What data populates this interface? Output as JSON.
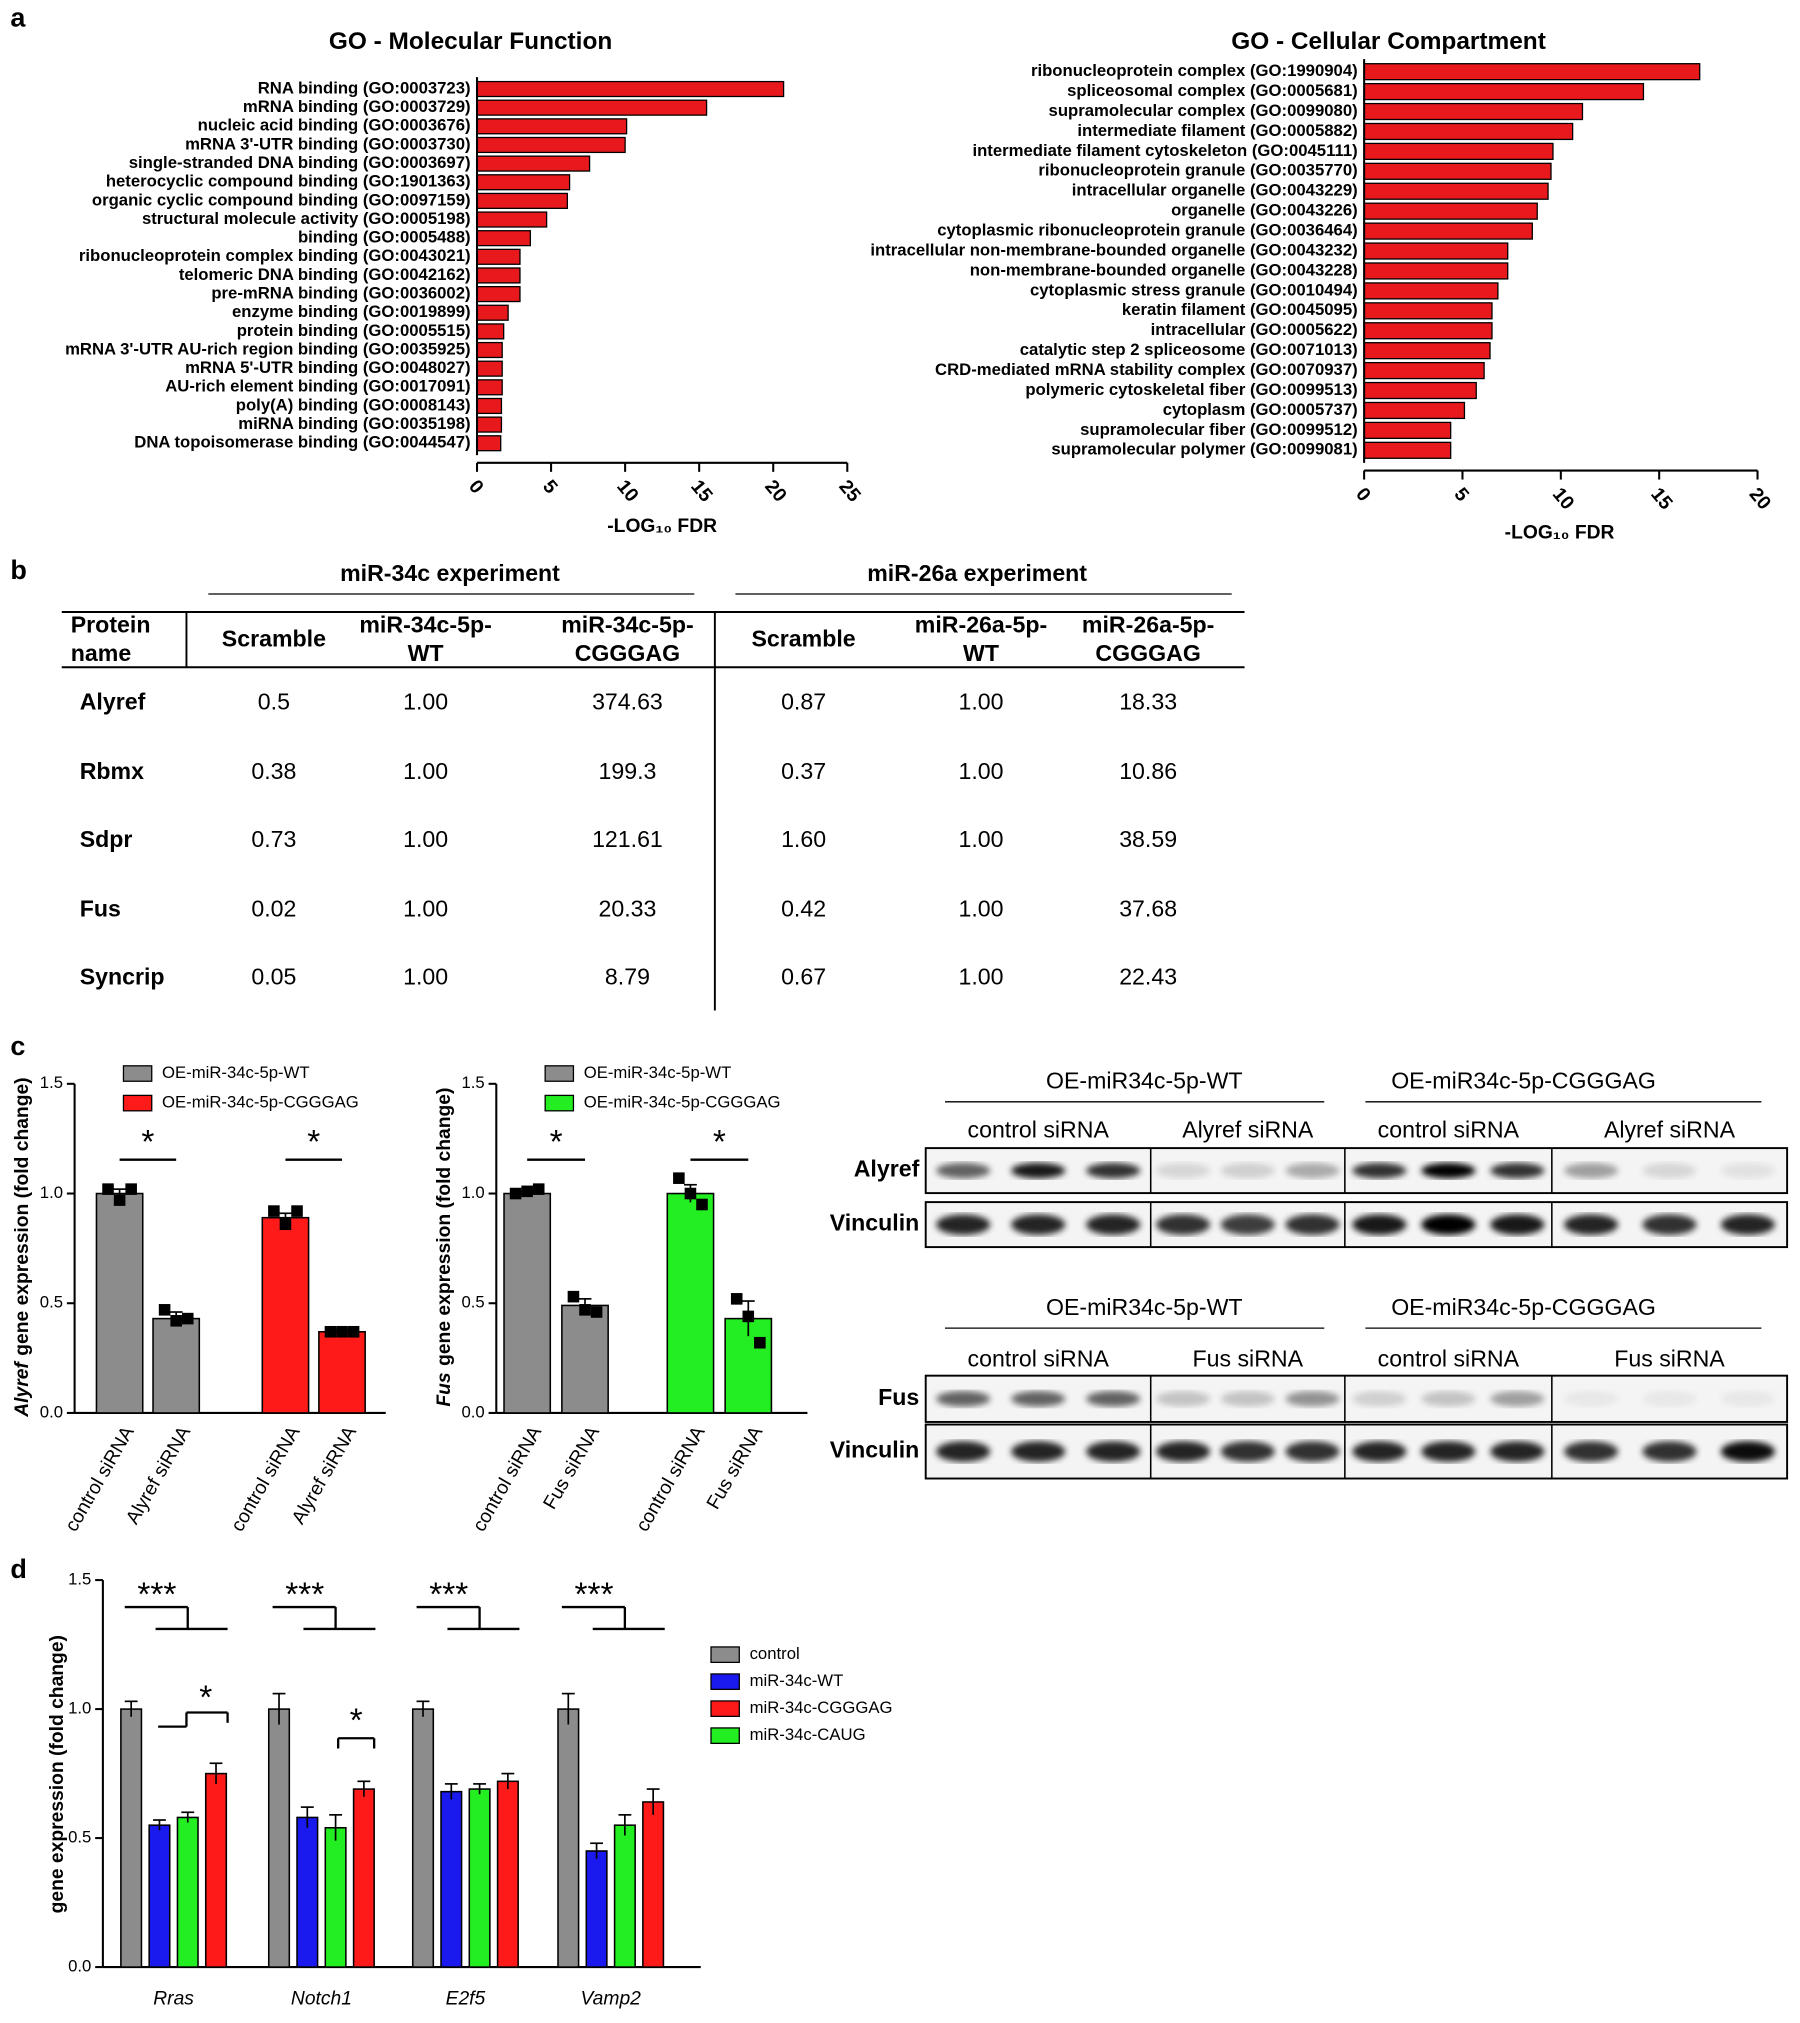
{
  "panel_labels": [
    "a",
    "b",
    "c",
    "d"
  ],
  "chart_data": [
    {
      "type": "hbar",
      "title": "GO - Molecular Function",
      "color": "#e8191c",
      "categories": [
        "RNA binding (GO:0003723)",
        "mRNA binding (GO:0003729)",
        "nucleic acid binding (GO:0003676)",
        "mRNA 3'-UTR binding (GO:0003730)",
        "single-stranded DNA binding (GO:0003697)",
        "heterocyclic compound binding (GO:1901363)",
        "organic cyclic compound binding (GO:0097159)",
        "structural molecule activity (GO:0005198)",
        "binding (GO:0005488)",
        "ribonucleoprotein complex binding (GO:0043021)",
        "telomeric DNA binding (GO:0042162)",
        "pre-mRNA binding (GO:0036002)",
        "enzyme binding (GO:0019899)",
        "protein binding (GO:0005515)",
        "mRNA 3'-UTR AU-rich region binding (GO:0035925)",
        "mRNA 5'-UTR binding (GO:0048027)",
        "AU-rich element binding (GO:0017091)",
        "poly(A) binding (GO:0008143)",
        "miRNA binding (GO:0035198)",
        "DNA topoisomerase binding (GO:0044547)"
      ],
      "values": [
        20.7,
        15.5,
        10.1,
        10.0,
        7.6,
        6.25,
        6.1,
        4.7,
        3.6,
        2.9,
        2.9,
        2.9,
        2.1,
        1.8,
        1.7,
        1.7,
        1.7,
        1.65,
        1.65,
        1.6
      ],
      "xlim": [
        0,
        25
      ],
      "xticks": [
        0,
        5,
        10,
        15,
        20,
        25
      ],
      "xlabel": "-LOG₁₀ FDR"
    },
    {
      "type": "hbar",
      "title": "GO - Cellular Compartment",
      "color": "#e8191c",
      "categories": [
        "ribonucleoprotein complex (GO:1990904)",
        "spliceosomal complex (GO:0005681)",
        "supramolecular complex (GO:0099080)",
        "intermediate filament (GO:0005882)",
        "intermediate filament cytoskeleton (GO:0045111)",
        "ribonucleoprotein granule (GO:0035770)",
        "intracellular organelle (GO:0043229)",
        "organelle (GO:0043226)",
        "cytoplasmic ribonucleoprotein granule (GO:0036464)",
        "intracellular non-membrane-bounded organelle (GO:0043232)",
        "non-membrane-bounded organelle (GO:0043228)",
        "cytoplasmic stress granule (GO:0010494)",
        "keratin filament (GO:0045095)",
        "intracellular (GO:0005622)",
        "catalytic step 2 spliceosome (GO:0071013)",
        "CRD-mediated mRNA stability complex (GO:0070937)",
        "polymeric cytoskeletal fiber (GO:0099513)",
        "cytoplasm (GO:0005737)",
        "supramolecular fiber (GO:0099512)",
        "supramolecular polymer (GO:0099081)"
      ],
      "values": [
        17.06,
        14.2,
        11.1,
        10.6,
        9.6,
        9.5,
        9.35,
        8.8,
        8.55,
        7.3,
        7.3,
        6.8,
        6.5,
        6.5,
        6.4,
        6.1,
        5.7,
        5.1,
        4.4,
        4.4
      ],
      "xlim": [
        0,
        20
      ],
      "xticks": [
        0,
        5,
        10,
        15,
        20
      ],
      "xlabel": "-LOG₁₀ FDR"
    },
    {
      "type": "bar",
      "ylabel_gene": "Alyref",
      "ylabel": "gene expression (fold change)",
      "categories": [
        "control siRNA",
        "Alyref siRNA",
        "control siRNA",
        "Alyref siRNA"
      ],
      "series": [
        {
          "name": "OE-miR-34c-5p-WT",
          "color": "#8c8c8c",
          "values": [
            1.0,
            0.43,
            null,
            null
          ],
          "errors": [
            0.02,
            0.03,
            null,
            null
          ],
          "points": [
            [
              1.02,
              0.97,
              1.02
            ],
            [
              0.47,
              0.42,
              0.43
            ],
            null,
            null
          ]
        },
        {
          "name": "OE-miR-34c-5p-CGGGAG",
          "color": "#ff1a1a",
          "values": [
            null,
            null,
            0.89,
            0.37
          ],
          "errors": [
            null,
            null,
            0.02,
            0.01
          ],
          "points": [
            null,
            null,
            [
              0.92,
              0.86,
              0.92
            ],
            [
              0.37,
              0.37,
              0.37
            ]
          ]
        }
      ],
      "ylim": [
        0,
        1.5
      ],
      "yticks": [
        {
          "value": 0,
          "label": "0.0"
        },
        0.5,
        {
          "value": 1,
          "label": "1.0"
        },
        1.5
      ],
      "annotations": [
        "*",
        "*"
      ]
    },
    {
      "type": "bar",
      "ylabel_gene": "Fus",
      "ylabel": "gene expression (fold change)",
      "categories": [
        "control siRNA",
        "Fus siRNA",
        "control siRNA",
        "Fus siRNA"
      ],
      "series": [
        {
          "name": "OE-miR-34c-5p-WT",
          "color": "#8c8c8c",
          "values": [
            1.0,
            0.49,
            null,
            null
          ],
          "errors": [
            0.01,
            0.03,
            null,
            null
          ],
          "points": [
            [
              1.0,
              1.01,
              1.02
            ],
            [
              0.53,
              0.47,
              0.46
            ],
            null,
            null
          ]
        },
        {
          "name": "OE-miR-34c-5p-CGGGAG",
          "color": "#22ee22",
          "values": [
            null,
            null,
            1.0,
            0.43
          ],
          "errors": [
            null,
            null,
            0.04,
            0.08
          ],
          "points": [
            null,
            null,
            [
              1.07,
              1.0,
              0.95
            ],
            [
              0.52,
              0.44,
              0.32
            ]
          ]
        }
      ],
      "ylim": [
        0,
        1.5
      ],
      "yticks": [
        {
          "value": 0,
          "label": "0.0"
        },
        0.5,
        {
          "value": 1,
          "label": "1.0"
        },
        1.5
      ],
      "annotations": [
        "*",
        "*"
      ]
    },
    {
      "type": "grouped",
      "ylabel": "gene expression (fold change)",
      "categories": [
        "Rras",
        "Notch1",
        "E2f5",
        "Vamp2"
      ],
      "series": [
        {
          "name": "control",
          "color": "#8c8c8c",
          "values": [
            1.0,
            1.0,
            1.0,
            1.0
          ],
          "errors": [
            0.03,
            0.06,
            0.03,
            0.06
          ]
        },
        {
          "name": "miR-34c-WT",
          "color": "#1a1aee",
          "values": [
            0.55,
            0.58,
            0.68,
            0.45
          ],
          "errors": [
            0.02,
            0.04,
            0.03,
            0.03
          ]
        },
        {
          "name": "miR-34c-CGGGAG",
          "color": "#ff1a1a",
          "values": [
            0.75,
            0.69,
            0.72,
            0.64
          ],
          "errors": [
            0.04,
            0.03,
            0.03,
            0.05
          ]
        },
        {
          "name": "miR-34c-CAUG",
          "color": "#22ee22",
          "values": [
            0.58,
            0.54,
            0.69,
            0.55
          ],
          "errors": [
            0.02,
            0.05,
            0.02,
            0.04
          ]
        }
      ],
      "ylim": [
        0,
        1.5
      ],
      "yticks": [
        {
          "value": 0,
          "label": "0.0"
        },
        0.5,
        {
          "value": 1,
          "label": "1.0"
        },
        1.5
      ],
      "annotations": [
        "***",
        "***",
        "***",
        "***",
        "*",
        "*"
      ]
    }
  ],
  "table": {
    "groups": [
      "miR-34c experiment",
      "miR-26a experiment"
    ],
    "columns": [
      "Protein name",
      "Scramble",
      "miR-34c-5p-WT",
      "miR-34c-5p-CGGGAG",
      "Scramble",
      "miR-26a-5p-WT",
      "miR-26a-5p-CGGGAG"
    ],
    "rows": [
      [
        "Alyref",
        "0.5",
        "1.00",
        "374.63",
        "0.87",
        "1.00",
        "18.33"
      ],
      [
        "Rbmx",
        "0.38",
        "1.00",
        "199.3",
        "0.37",
        "1.00",
        "10.86"
      ],
      [
        "Sdpr",
        "0.73",
        "1.00",
        "121.61",
        "1.60",
        "1.00",
        "38.59"
      ],
      [
        "Fus",
        "0.02",
        "1.00",
        "20.33",
        "0.42",
        "1.00",
        "37.68"
      ],
      [
        "Syncrip",
        "0.05",
        "1.00",
        "8.79",
        "0.67",
        "1.00",
        "22.43"
      ]
    ]
  },
  "blots": [
    {
      "headers": [
        "OE-miR34c-5p-WT",
        "OE-miR34c-5p-CGGGAG"
      ],
      "lanes": [
        "control siRNA",
        "Alyref siRNA",
        "control siRNA",
        "Alyref siRNA"
      ],
      "rows": [
        "Alyref",
        "Vinculin"
      ]
    },
    {
      "headers": [
        "OE-miR34c-5p-WT",
        "OE-miR34c-5p-CGGGAG"
      ],
      "lanes": [
        "control siRNA",
        "Fus siRNA",
        "control siRNA",
        "Fus siRNA"
      ],
      "rows": [
        "Fus",
        "Vinculin"
      ]
    }
  ]
}
